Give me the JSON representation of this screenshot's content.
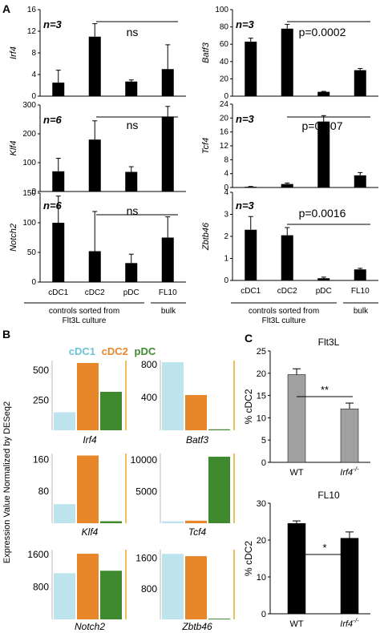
{
  "panel_labels": {
    "a": "A",
    "b": "B",
    "c": "C"
  },
  "panel_a": {
    "categories": [
      "cDC1",
      "cDC2",
      "pDC",
      "FL10"
    ],
    "footer": {
      "group1_line1": "controls sorted from",
      "group1_line2": "Flt3L culture",
      "group2": "bulk"
    }
  },
  "panel_b": {
    "legend": [
      {
        "label": "cDC1",
        "color": "#6cc3d5"
      },
      {
        "label": "cDC2",
        "color": "#e8862a"
      },
      {
        "label": "pDC",
        "color": "#3f8a2f"
      }
    ],
    "ylabel": "Expression Value Normalized by DESeq2"
  },
  "chart_data": [
    {
      "id": "a_irf4",
      "type": "bar",
      "panel": "A",
      "ylabel": "Irf4",
      "n": "n=3",
      "categories": [
        "cDC1",
        "cDC2",
        "pDC",
        "FL10"
      ],
      "values": [
        2.5,
        11,
        2.7,
        5
      ],
      "errors": [
        2.3,
        2.4,
        0.3,
        4.5
      ],
      "ylim": [
        0,
        16
      ],
      "yticks": [
        0,
        4,
        8,
        12,
        16
      ],
      "annotation": "ns"
    },
    {
      "id": "a_batf3",
      "type": "bar",
      "panel": "A",
      "ylabel": "Batf3",
      "n": "n=3",
      "categories": [
        "cDC1",
        "cDC2",
        "pDC",
        "FL10"
      ],
      "values": [
        63,
        78,
        5,
        30
      ],
      "errors": [
        4,
        5,
        0.5,
        2
      ],
      "ylim": [
        0,
        100
      ],
      "yticks": [
        0,
        20,
        40,
        60,
        80,
        100
      ],
      "annotation": "p=0.0002"
    },
    {
      "id": "a_klf4",
      "type": "bar",
      "panel": "A",
      "ylabel": "Klf4",
      "n": "n=6",
      "categories": [
        "cDC1",
        "cDC2",
        "pDC",
        "FL10"
      ],
      "values": [
        70,
        180,
        68,
        260
      ],
      "errors": [
        45,
        65,
        18,
        35
      ],
      "ylim": [
        0,
        300
      ],
      "yticks": [
        0,
        100,
        200,
        300
      ],
      "annotation": "ns"
    },
    {
      "id": "a_tcf4",
      "type": "bar",
      "panel": "A",
      "ylabel": "Tcf4",
      "n": "n=3",
      "categories": [
        "cDC1",
        "cDC2",
        "pDC",
        "FL10"
      ],
      "values": [
        0.2,
        1,
        19,
        3.5
      ],
      "errors": [
        0.1,
        0.3,
        1.7,
        0.8
      ],
      "ylim": [
        0,
        24
      ],
      "yticks": [
        0,
        4,
        8,
        12,
        16,
        20,
        24
      ],
      "annotation": "p=0.007"
    },
    {
      "id": "a_notch2",
      "type": "bar",
      "panel": "A",
      "ylabel": "Notch2",
      "n": "n=6",
      "categories": [
        "cDC1",
        "cDC2",
        "pDC",
        "FL10"
      ],
      "values": [
        100,
        52,
        32,
        75
      ],
      "errors": [
        45,
        67,
        15,
        35
      ],
      "ylim": [
        0,
        150
      ],
      "yticks": [
        0,
        50,
        100,
        150
      ],
      "annotation": "ns"
    },
    {
      "id": "a_zbtb46",
      "type": "bar",
      "panel": "A",
      "ylabel": "Zbtb46",
      "n": "n=3",
      "categories": [
        "cDC1",
        "cDC2",
        "pDC",
        "FL10"
      ],
      "values": [
        2.3,
        2.05,
        0.1,
        0.5
      ],
      "errors": [
        0.6,
        0.35,
        0.05,
        0.05
      ],
      "ylim": [
        0,
        4
      ],
      "yticks": [
        0,
        1,
        2,
        3,
        4
      ],
      "annotation": "p=0.0016"
    },
    {
      "id": "b_irf4",
      "type": "bar",
      "panel": "B",
      "gene": "Irf4",
      "categories": [
        "cDC1",
        "cDC2",
        "pDC"
      ],
      "values": [
        150,
        560,
        320
      ],
      "ylim": [
        0,
        580
      ],
      "yticks": [
        250,
        500
      ]
    },
    {
      "id": "b_batf3",
      "type": "bar",
      "panel": "B",
      "gene": "Batf3",
      "categories": [
        "cDC1",
        "cDC2",
        "pDC"
      ],
      "values": [
        830,
        430,
        12
      ],
      "ylim": [
        0,
        850
      ],
      "yticks": [
        400,
        800
      ]
    },
    {
      "id": "b_klf4",
      "type": "bar",
      "panel": "B",
      "gene": "Klf4",
      "categories": [
        "cDC1",
        "cDC2",
        "pDC"
      ],
      "values": [
        48,
        170,
        5
      ],
      "ylim": [
        0,
        175
      ],
      "yticks": [
        80,
        160
      ]
    },
    {
      "id": "b_tcf4",
      "type": "bar",
      "panel": "B",
      "gene": "Tcf4",
      "categories": [
        "cDC1",
        "cDC2",
        "pDC"
      ],
      "values": [
        300,
        400,
        10500
      ],
      "ylim": [
        0,
        11000
      ],
      "yticks": [
        5000,
        10000
      ]
    },
    {
      "id": "b_notch2",
      "type": "bar",
      "panel": "B",
      "gene": "Notch2",
      "categories": [
        "cDC1",
        "cDC2",
        "pDC"
      ],
      "values": [
        1140,
        1620,
        1200
      ],
      "ylim": [
        0,
        1720
      ],
      "yticks": [
        800,
        1600
      ]
    },
    {
      "id": "b_zbtb46",
      "type": "bar",
      "panel": "B",
      "gene": "Zbtb46",
      "categories": [
        "cDC1",
        "cDC2",
        "pDC"
      ],
      "values": [
        1710,
        1650,
        20
      ],
      "ylim": [
        0,
        1820
      ],
      "yticks": [
        800,
        1600
      ]
    },
    {
      "id": "c_flt3l",
      "type": "bar",
      "panel": "C",
      "title": "Flt3L",
      "ylabel": "% cDC2",
      "categories": [
        "WT",
        "Irf4-/-"
      ],
      "cat_main": [
        "WT",
        "Irf4"
      ],
      "cat_sup": [
        "",
        "-/-"
      ],
      "values": [
        19.7,
        12
      ],
      "errors": [
        1.3,
        1.3
      ],
      "ylim": [
        0,
        25
      ],
      "yticks": [
        0,
        5,
        10,
        15,
        20,
        25
      ],
      "annotation": "**",
      "color": "#a0a0a0"
    },
    {
      "id": "c_fl10",
      "type": "bar",
      "panel": "C",
      "title": "FL10",
      "ylabel": "% cDC2",
      "categories": [
        "WT",
        "Irf4-/-"
      ],
      "cat_main": [
        "WT",
        "Irf4"
      ],
      "cat_sup": [
        "",
        "-/-"
      ],
      "values": [
        24.5,
        20.5
      ],
      "errors": [
        0.7,
        1.7
      ],
      "ylim": [
        0,
        30
      ],
      "yticks": [
        0,
        10,
        20,
        30
      ],
      "annotation": "*",
      "color": "#000000"
    }
  ]
}
